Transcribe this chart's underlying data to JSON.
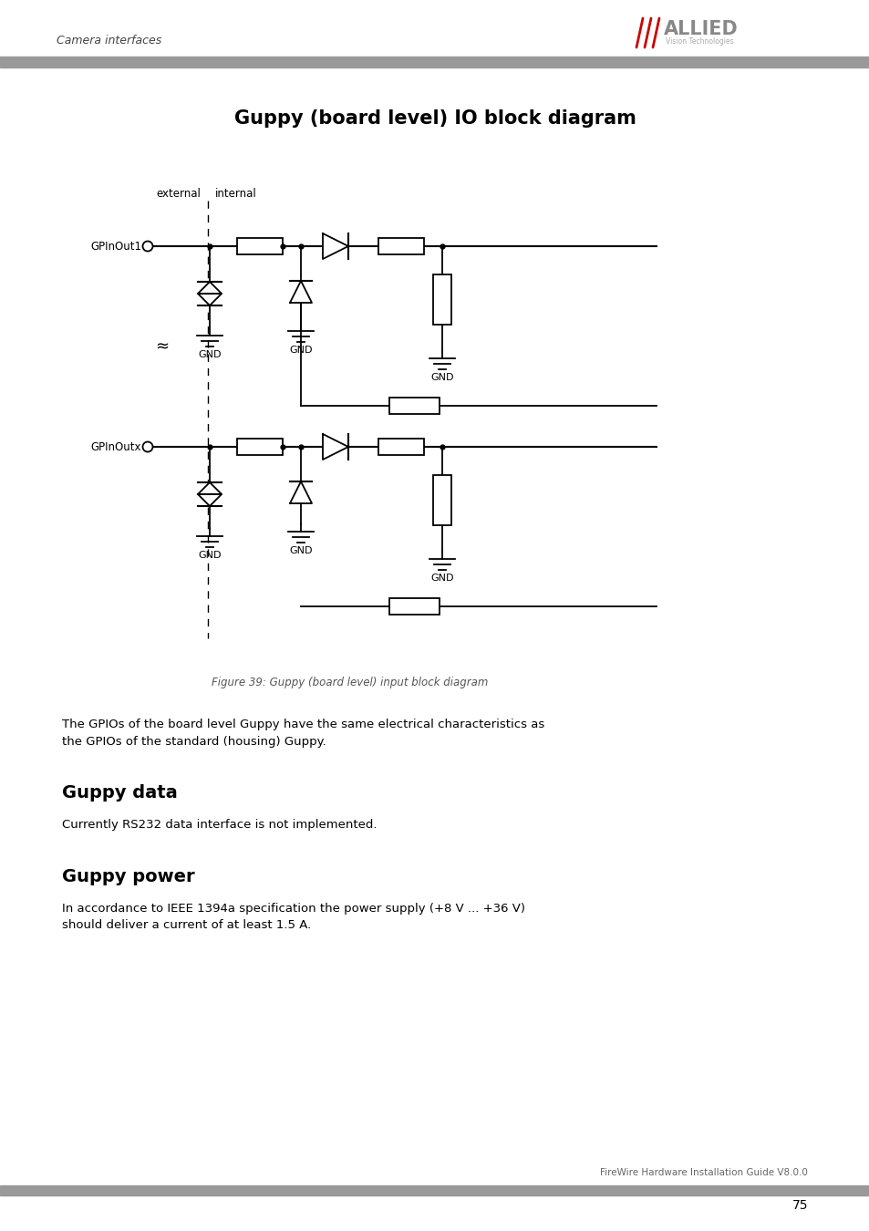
{
  "page_title": "Guppy (board level) IO block diagram",
  "header_text": "Camera interfaces",
  "footer_text": "FireWire Hardware Installation Guide V8.0.0",
  "page_number": "75",
  "figure_caption": "Figure 39: Guppy (board level) input block diagram",
  "description1": "The GPIOs of the board level Guppy have the same electrical characteristics as\nthe GPIOs of the standard (housing) Guppy.",
  "section1_title": "Guppy data",
  "section1_body": "Currently RS232 data interface is not implemented.",
  "section2_title": "Guppy power",
  "section2_body": "In accordance to IEEE 1394a specification the power supply (+8 V ... +36 V)\nshould deliver a current of at least 1.5 A.",
  "bg_color": "#ffffff",
  "text_color": "#000000",
  "gray_bar_color": "#999999",
  "allied_red": "#cc0000",
  "allied_gray": "#aaaaaa"
}
